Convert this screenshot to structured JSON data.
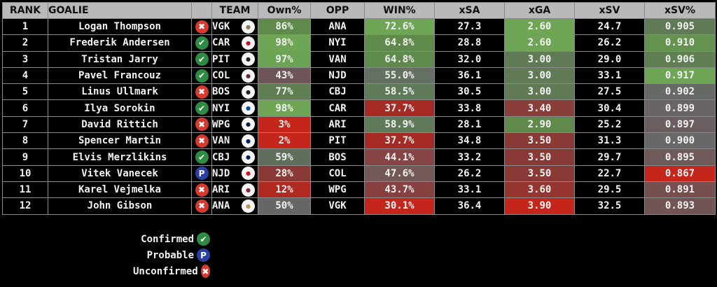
{
  "headers": {
    "rank": "RANK",
    "goalie": "GOALIE",
    "status": "",
    "team": "TEAM",
    "own": "Own%",
    "opp": "OPP",
    "win": "WIN%",
    "xsa": "xSA",
    "xga": "xGA",
    "xsv": "xSV",
    "xsvp": "xSV%"
  },
  "status_styles": {
    "confirmed": {
      "glyph": "✔",
      "icon": "check-icon",
      "color": "#2f8a43"
    },
    "probable": {
      "glyph": "P",
      "icon": "probable-icon",
      "color": "#2b3fa8"
    },
    "unconfirmed": {
      "glyph": "✖",
      "icon": "x-icon",
      "color": "#d63a2e"
    }
  },
  "rows": [
    {
      "rank": "1",
      "goalie": "Logan Thompson",
      "status": "unconfirmed",
      "team": "VGK",
      "logo_color": "#8a7a5a",
      "own": "86%",
      "own_bg": "#5f8a4c",
      "opp": "ANA",
      "win": "72.6%",
      "win_bg": "#6ea655",
      "xsa": "27.3",
      "xga": "2.60",
      "xga_bg": "#6ea655",
      "xsv": "24.7",
      "xsvp": "0.905",
      "xsvp_bg": "#5f7a55"
    },
    {
      "rank": "2",
      "goalie": "Frederik Andersen",
      "status": "confirmed",
      "team": "CAR",
      "logo_color": "#c8102e",
      "own": "98%",
      "own_bg": "#6ea655",
      "opp": "NYI",
      "win": "64.8%",
      "win_bg": "#5f8a4c",
      "xsa": "28.8",
      "xga": "2.60",
      "xga_bg": "#6ea655",
      "xsv": "26.2",
      "xsvp": "0.910",
      "xsvp_bg": "#64924f"
    },
    {
      "rank": "3",
      "goalie": "Tristan Jarry",
      "status": "confirmed",
      "team": "PIT",
      "logo_color": "#222222",
      "own": "97%",
      "own_bg": "#6aa352",
      "opp": "VAN",
      "win": "64.8%",
      "win_bg": "#5f8a4c",
      "xsa": "32.0",
      "xga": "3.00",
      "xga_bg": "#5f7a55",
      "xsv": "29.0",
      "xsvp": "0.906",
      "xsvp_bg": "#5f7f53"
    },
    {
      "rank": "4",
      "goalie": "Pavel Francouz",
      "status": "confirmed",
      "team": "COL",
      "logo_color": "#6f263d",
      "own": "43%",
      "own_bg": "#6e5558",
      "opp": "NJD",
      "win": "55.0%",
      "win_bg": "#647062",
      "xsa": "36.1",
      "xga": "3.00",
      "xga_bg": "#5f7a55",
      "xsv": "33.1",
      "xsvp": "0.917",
      "xsvp_bg": "#6ea655"
    },
    {
      "rank": "5",
      "goalie": "Linus Ullmark",
      "status": "unconfirmed",
      "team": "BOS",
      "logo_color": "#222222",
      "own": "77%",
      "own_bg": "#5f7f53",
      "opp": "CBJ",
      "win": "58.5%",
      "win_bg": "#5f7a58",
      "xsa": "30.5",
      "xga": "3.00",
      "xga_bg": "#5f7a55",
      "xsv": "27.5",
      "xsvp": "0.902",
      "xsvp_bg": "#666a64"
    },
    {
      "rank": "6",
      "goalie": "Ilya Sorokin",
      "status": "confirmed",
      "team": "NYI",
      "logo_color": "#00539b",
      "own": "98%",
      "own_bg": "#6ea655",
      "opp": "CAR",
      "win": "37.7%",
      "win_bg": "#a52a24",
      "xsa": "33.8",
      "xga": "3.40",
      "xga_bg": "#8a3e3a",
      "xsv": "30.4",
      "xsvp": "0.899",
      "xsvp_bg": "#6a6464"
    },
    {
      "rank": "7",
      "goalie": "David Rittich",
      "status": "unconfirmed",
      "team": "WPG",
      "logo_color": "#041e42",
      "own": "3%",
      "own_bg": "#c4261c",
      "opp": "ARI",
      "win": "58.9%",
      "win_bg": "#5f7a58",
      "xsa": "28.1",
      "xga": "2.90",
      "xga_bg": "#5f8a4c",
      "xsv": "25.2",
      "xsvp": "0.897",
      "xsvp_bg": "#6a5e5e"
    },
    {
      "rank": "8",
      "goalie": "Spencer Martin",
      "status": "unconfirmed",
      "team": "VAN",
      "logo_color": "#00205b",
      "own": "2%",
      "own_bg": "#c4261c",
      "opp": "PIT",
      "win": "37.7%",
      "win_bg": "#a52a24",
      "xsa": "34.8",
      "xga": "3.50",
      "xga_bg": "#8a3a36",
      "xsv": "31.3",
      "xsvp": "0.900",
      "xsvp_bg": "#686868"
    },
    {
      "rank": "9",
      "goalie": "Elvis Merzlikins",
      "status": "confirmed",
      "team": "CBJ",
      "logo_color": "#002654",
      "own": "59%",
      "own_bg": "#5f6f5c",
      "opp": "BOS",
      "win": "44.1%",
      "win_bg": "#864444",
      "xsa": "33.2",
      "xga": "3.50",
      "xga_bg": "#8a3a36",
      "xsv": "29.7",
      "xsvp": "0.895",
      "xsvp_bg": "#6f5a5a"
    },
    {
      "rank": "10",
      "goalie": "Vitek Vanecek",
      "status": "probable",
      "team": "NJD",
      "logo_color": "#ce1126",
      "own": "28%",
      "own_bg": "#8a3a36",
      "opp": "COL",
      "win": "47.6%",
      "win_bg": "#735858",
      "xsa": "26.2",
      "xga": "3.50",
      "xga_bg": "#8a3a36",
      "xsv": "22.7",
      "xsvp": "0.867",
      "xsvp_bg": "#c4261c"
    },
    {
      "rank": "11",
      "goalie": "Karel Vejmelka",
      "status": "unconfirmed",
      "team": "ARI",
      "logo_color": "#8c2633",
      "own": "12%",
      "own_bg": "#b02a22",
      "opp": "WPG",
      "win": "43.7%",
      "win_bg": "#864040",
      "xsa": "33.1",
      "xga": "3.60",
      "xga_bg": "#943530",
      "xsv": "29.5",
      "xsvp": "0.891",
      "xsvp_bg": "#764e4e"
    },
    {
      "rank": "12",
      "goalie": "John Gibson",
      "status": "unconfirmed",
      "team": "ANA",
      "logo_color": "#b9975b",
      "own": "50%",
      "own_bg": "#666666",
      "opp": "VGK",
      "win": "30.1%",
      "win_bg": "#c4261c",
      "xsa": "36.4",
      "xga": "3.90",
      "xga_bg": "#c4261c",
      "xsv": "32.5",
      "xsvp": "0.893",
      "xsvp_bg": "#725454"
    }
  ],
  "legend": [
    {
      "label": "Confirmed",
      "status": "confirmed"
    },
    {
      "label": "Probable",
      "status": "probable"
    },
    {
      "label": "Unconfirmed",
      "status": "unconfirmed"
    }
  ]
}
